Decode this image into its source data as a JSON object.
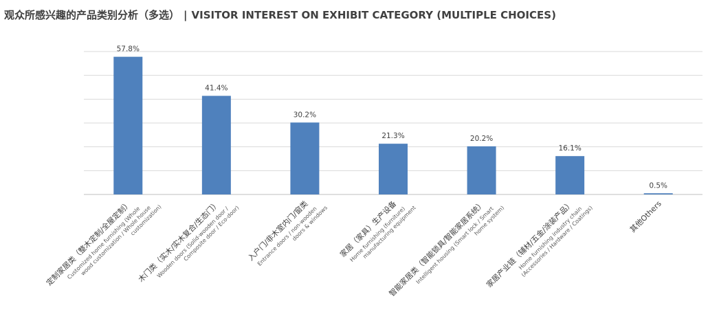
{
  "title": {
    "zh": "观众所感兴趣的产品类别分析（多选）",
    "separator": "|",
    "en": "VISITOR INTEREST ON EXHIBIT CATEGORY (MULTIPLE CHOICES)"
  },
  "colors": {
    "bar": "#4f81bd",
    "grid": "#d9d9d9",
    "text": "#404040"
  },
  "chart_data": {
    "type": "bar",
    "title": "观众所感兴趣的产品类别分析（多选） | VISITOR INTEREST ON EXHIBIT CATEGORY (MULTIPLE CHOICES)",
    "xlabel": "",
    "ylabel": "",
    "ylim": [
      0,
      60
    ],
    "grid": true,
    "legend": "none",
    "value_unit": "%",
    "categories": [
      {
        "zh": "定制家居类（整木定制/全屋定制）",
        "en": [
          "Customized home furnishing (Whole",
          "wood customization / Whole house",
          "customization)"
        ]
      },
      {
        "zh": "木门类（实木/实木复合/生态门）",
        "en": [
          "Wooden doors (Solid-wooden door /",
          "Composite door / Eco-door)"
        ]
      },
      {
        "zh": "入户门/非木室内门/窗类",
        "en": [
          "Entrance doors / non-wooden",
          "doors & windows"
        ]
      },
      {
        "zh": "家居（家具）生产设备",
        "en": [
          "Home furnishing (furniture)",
          "manufacturing equipment"
        ]
      },
      {
        "zh": "智能家居类（智能锁具/智能家居系统）",
        "en": [
          "Intelligent housing (Smart lock / Smart",
          "home system)"
        ]
      },
      {
        "zh": "家居产业链（辅材/五金/涂装产品）",
        "en": [
          "Home furnishing industry chain",
          "(Accessories / Hardware / Coatings)"
        ]
      },
      {
        "zh": "其他Others",
        "en": []
      }
    ],
    "values": [
      57.8,
      41.4,
      30.2,
      21.3,
      20.2,
      16.1,
      0.5
    ],
    "labels": [
      "57.8%",
      "41.4%",
      "30.2%",
      "21.3%",
      "20.2%",
      "16.1%",
      "0.5%"
    ]
  }
}
